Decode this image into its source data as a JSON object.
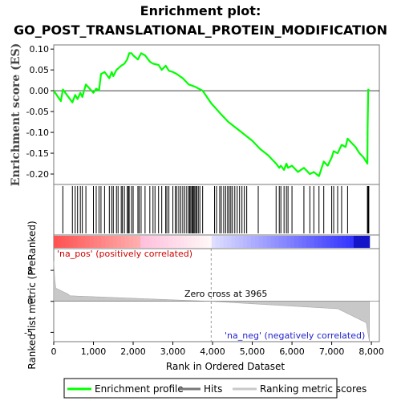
{
  "chart_data": {
    "type": "line",
    "title_line1": "Enrichment plot:",
    "title_line2": "GO_POST_TRANSLATIONAL_PROTEIN_MODIFICATION",
    "es_ylabel": "Enrichment score (ES)",
    "metric_ylabel": "Ranked list metric (PreRanked)",
    "xlabel": "Rank in Ordered Dataset",
    "xlim": [
      0,
      8200
    ],
    "es_ylim": [
      -0.225,
      0.11
    ],
    "metric_ylim": [
      -6.5,
      8.5
    ],
    "x_ticks": [
      "0",
      "1,000",
      "2,000",
      "3,000",
      "4,000",
      "5,000",
      "6,000",
      "7,000",
      "8,000"
    ],
    "x_tick_values": [
      0,
      1000,
      2000,
      3000,
      4000,
      5000,
      6000,
      7000,
      8000
    ],
    "es_ticks": [
      "0.10",
      "0.05",
      "0.00",
      "-0.05",
      "-0.10",
      "-0.15",
      "-0.20"
    ],
    "es_tick_values": [
      0.1,
      0.05,
      0.0,
      -0.05,
      -0.1,
      -0.15,
      -0.2
    ],
    "metric_ticks": [
      "5",
      "0",
      "-5"
    ],
    "metric_tick_values": [
      5,
      0,
      -5
    ],
    "total_genes": 7950,
    "series": [
      {
        "name": "Enrichment profile",
        "color": "#00ff00",
        "x": [
          0,
          180,
          230,
          470,
          540,
          600,
          670,
          720,
          810,
          1000,
          1070,
          1140,
          1190,
          1280,
          1400,
          1460,
          1500,
          1580,
          1700,
          1780,
          1850,
          1900,
          1960,
          2000,
          2120,
          2200,
          2300,
          2420,
          2500,
          2640,
          2720,
          2820,
          2900,
          3000,
          3100,
          3250,
          3400,
          3550,
          3750,
          3965,
          4200,
          4400,
          4600,
          4800,
          5000,
          5200,
          5400,
          5600,
          5680,
          5720,
          5800,
          5860,
          5900,
          6000,
          6150,
          6300,
          6450,
          6550,
          6680,
          6800,
          6900,
          7000,
          7050,
          7150,
          7250,
          7350,
          7400,
          7600,
          7700,
          7800,
          7900,
          7905,
          7920,
          7950
        ],
        "values": [
          0.0,
          -0.025,
          0.003,
          -0.028,
          -0.01,
          -0.02,
          -0.005,
          -0.015,
          0.015,
          -0.005,
          0.005,
          0.0,
          0.04,
          0.045,
          0.03,
          0.045,
          0.035,
          0.05,
          0.06,
          0.065,
          0.075,
          0.09,
          0.09,
          0.085,
          0.075,
          0.09,
          0.085,
          0.07,
          0.065,
          0.062,
          0.05,
          0.06,
          0.048,
          0.045,
          0.04,
          0.03,
          0.015,
          0.01,
          0.0,
          -0.03,
          -0.055,
          -0.075,
          -0.09,
          -0.105,
          -0.12,
          -0.14,
          -0.155,
          -0.175,
          -0.185,
          -0.18,
          -0.19,
          -0.175,
          -0.185,
          -0.18,
          -0.195,
          -0.185,
          -0.2,
          -0.195,
          -0.205,
          -0.17,
          -0.18,
          -0.16,
          -0.145,
          -0.15,
          -0.13,
          -0.135,
          -0.115,
          -0.135,
          -0.15,
          -0.16,
          -0.175,
          -0.09,
          0.003,
          0.0
        ]
      },
      {
        "name": "Hits",
        "color": "#000000",
        "positions": [
          230,
          470,
          540,
          600,
          670,
          720,
          810,
          1000,
          1070,
          1140,
          1190,
          1280,
          1400,
          1460,
          1500,
          1580,
          1620,
          1700,
          1730,
          1780,
          1850,
          1880,
          1900,
          1960,
          2000,
          2120,
          2150,
          2200,
          2300,
          2420,
          2500,
          2550,
          2640,
          2720,
          2820,
          2850,
          2900,
          3000,
          3060,
          3100,
          3150,
          3200,
          3250,
          3300,
          3350,
          3400,
          3420,
          3450,
          3480,
          3500,
          3520,
          3550,
          3580,
          3600,
          3640,
          3680,
          3750,
          4050,
          4100,
          4180,
          4220,
          4280,
          4330,
          4380,
          4420,
          4460,
          4500,
          4560,
          4620,
          4680,
          4740,
          4800,
          4860,
          5150,
          5600,
          5680,
          5720,
          5800,
          5860,
          5900,
          6000,
          6300,
          6450,
          6550,
          6680,
          6800,
          7000,
          7050,
          7150,
          7250,
          7400,
          7900,
          7905,
          7920,
          7935
        ]
      },
      {
        "name": "Ranking metric scores",
        "color": "#c0c0c0"
      }
    ],
    "annotations": {
      "pos_label": "'na_pos' (positively correlated)",
      "neg_label": "'na_neg' (negatively correlated)",
      "zero_cross": "Zero cross at 3965",
      "zero_cross_value": 3965
    },
    "legend": {
      "placement": "bottom",
      "items": [
        "Enrichment profile",
        "Hits",
        "Ranking metric scores"
      ]
    },
    "grid": false
  }
}
